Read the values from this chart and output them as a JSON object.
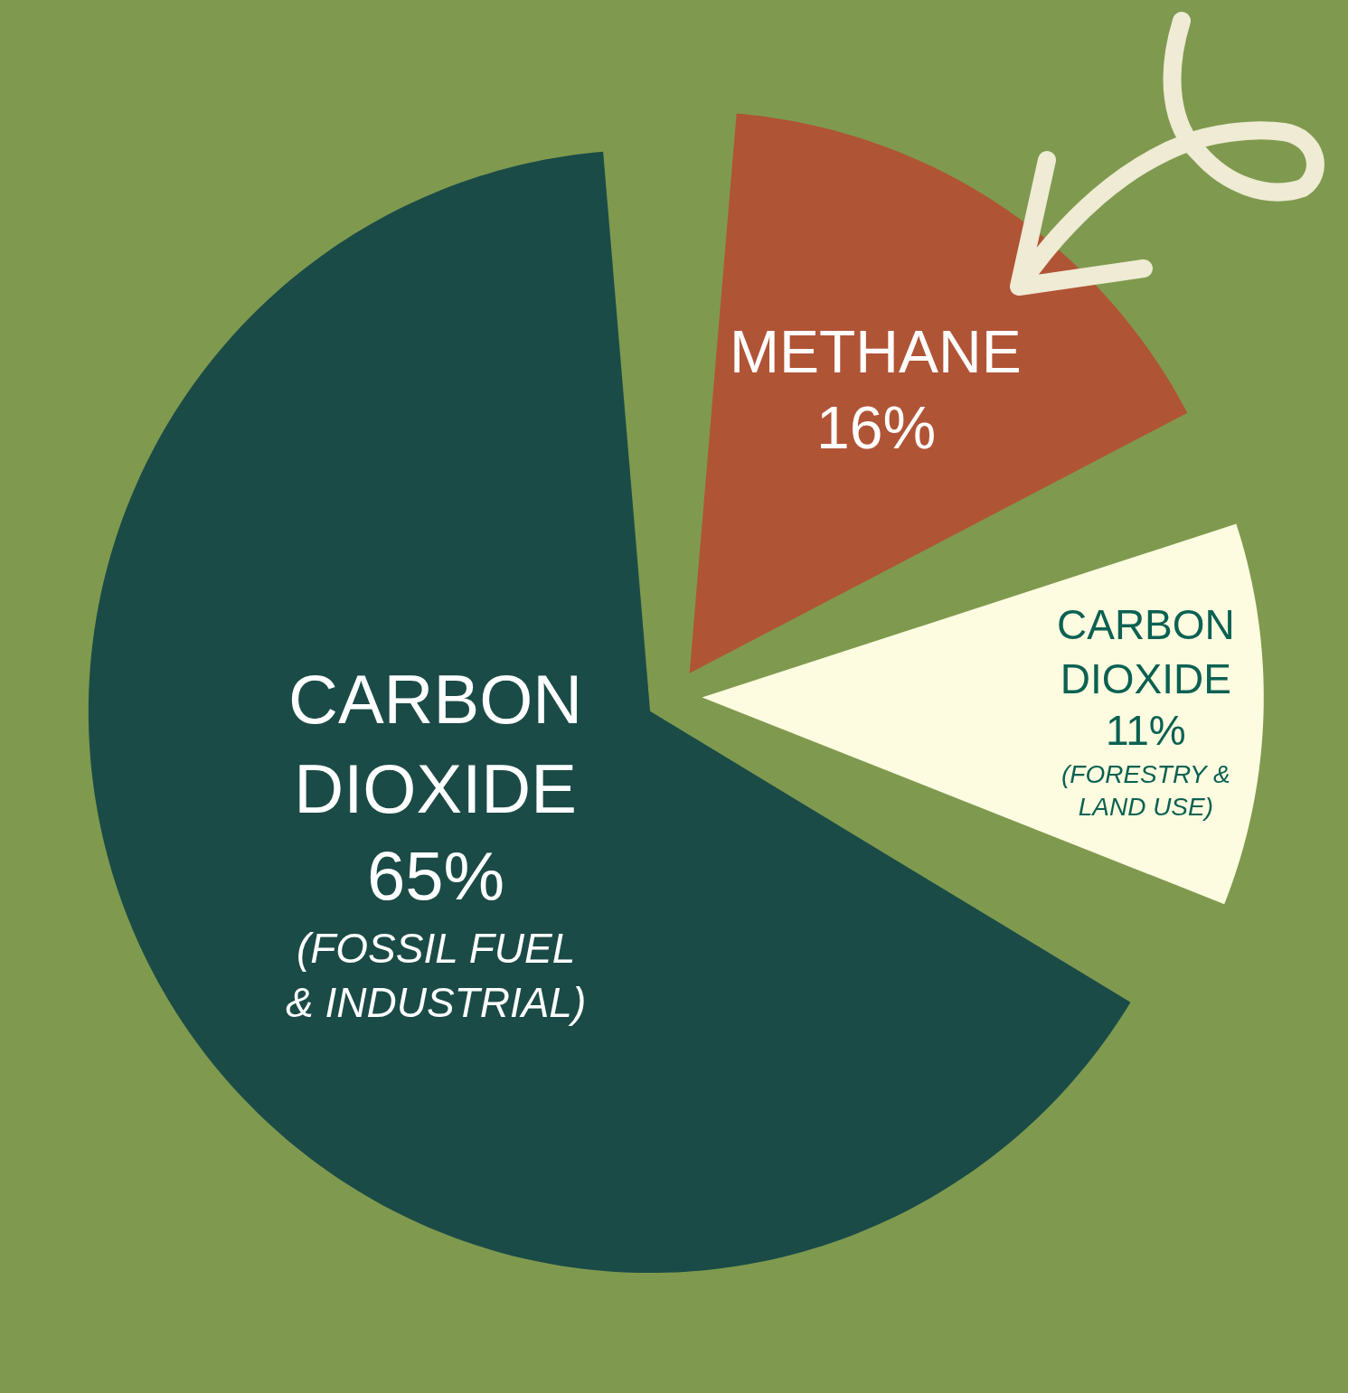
{
  "chart_data": {
    "type": "pie",
    "categories": [
      "METHANE",
      "CARBON DIOXIDE",
      "CARBON DIOXIDE"
    ],
    "values": [
      16,
      11,
      65
    ],
    "value_labels": [
      "16%",
      "11% (FORESTRY & LAND USE)",
      "65% (FOSSIL FUEL & INDUSTRIAL)"
    ],
    "colors": [
      "#b05436",
      "#fdfbe0",
      "#1b4b47"
    ]
  }
}
